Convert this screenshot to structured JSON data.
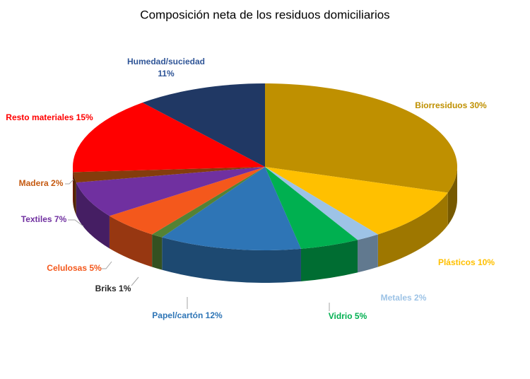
{
  "chart_data": {
    "type": "pie3d",
    "title": "Composición neta de los residuos domiciliarios",
    "categories": [
      "Biorresiduos",
      "Plásticos",
      "Metales",
      "Vidrio",
      "Papel/cartón",
      "Briks",
      "Celulosas",
      "Textiles",
      "Madera",
      "Resto materiales",
      "Humedad/suciedad"
    ],
    "values": [
      30,
      10,
      2,
      5,
      12,
      1,
      5,
      7,
      2,
      15,
      11
    ],
    "value_labels": [
      "30%",
      "10%",
      "2%",
      "5%",
      "12%",
      "1%",
      "5%",
      "7%",
      "2%",
      "15%",
      "11%"
    ],
    "colors": [
      "#bf9000",
      "#ffc000",
      "#9dc3e6",
      "#00b050",
      "#2e75b6",
      "#548235",
      "#f4581c",
      "#7030a0",
      "#843c0c",
      "#ff0000",
      "#203864"
    ],
    "label_colors": [
      "#bf9000",
      "#ffc000",
      "#9dc3e6",
      "#00b050",
      "#2e75b6",
      "#262626",
      "#f4581c",
      "#7030a0",
      "#c55a11",
      "#ff0000",
      "#2f5597"
    ]
  }
}
